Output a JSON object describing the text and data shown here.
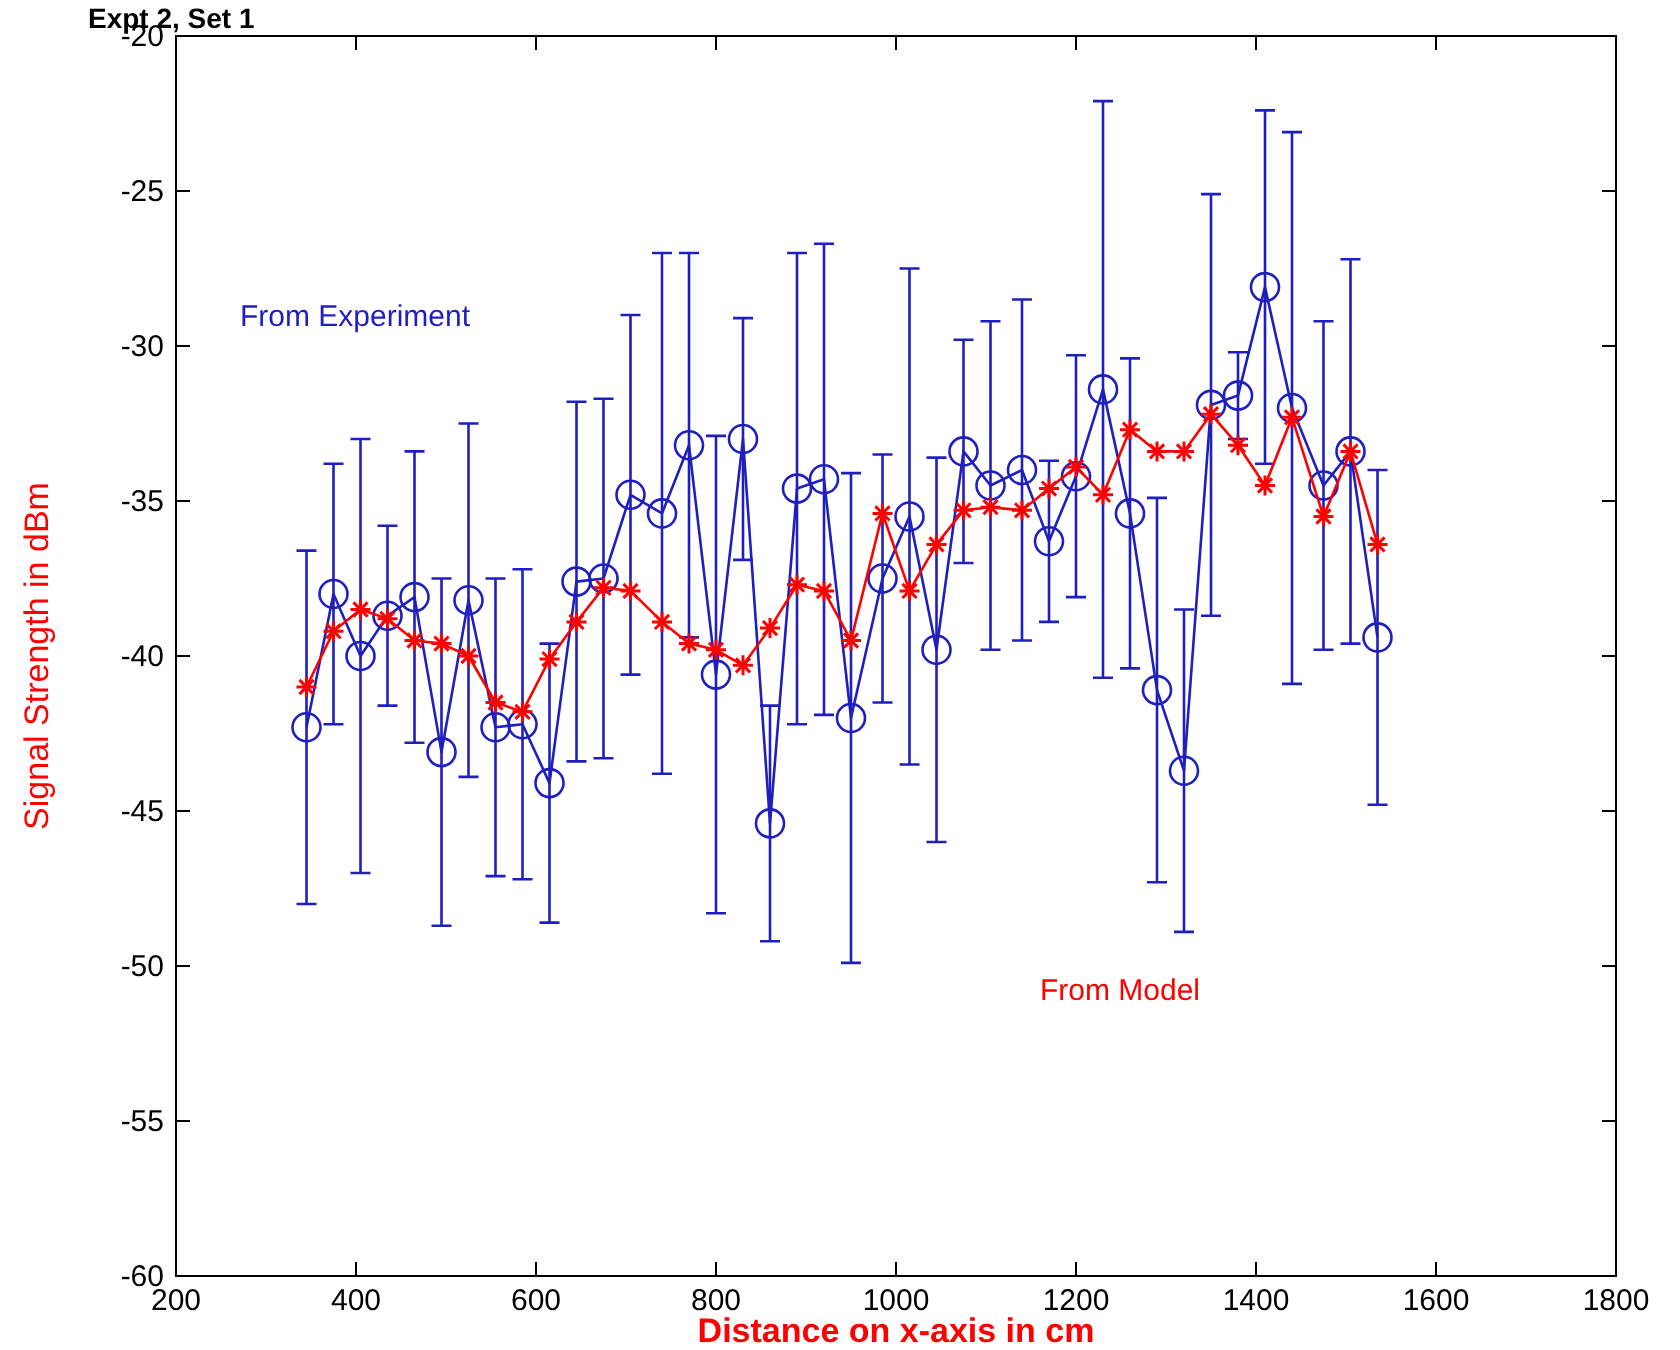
{
  "chart_data": {
    "type": "line",
    "title": "Expt 2, Set 1",
    "xlabel": "Distance on x-axis in cm",
    "ylabel": "Signal Strength in dBm",
    "x": [
      345,
      375,
      405,
      435,
      465,
      495,
      525,
      555,
      585,
      615,
      645,
      675,
      705,
      740,
      770,
      800,
      830,
      860,
      890,
      920,
      950,
      985,
      1015,
      1045,
      1075,
      1105,
      1140,
      1170,
      1200,
      1230,
      1260,
      1290,
      1320,
      1350,
      1380,
      1410,
      1440,
      1475,
      1505,
      1535
    ],
    "series": [
      {
        "name": "From Experiment",
        "color": "#1f1fbf",
        "marker": "circle",
        "values": [
          -42.3,
          -38,
          -40,
          -38.7,
          -38.1,
          -43.1,
          -38.2,
          -42.3,
          -42.2,
          -44.1,
          -37.6,
          -37.5,
          -34.8,
          -35.4,
          -33.2,
          -40.6,
          -33,
          -45.4,
          -34.6,
          -34.3,
          -42,
          -37.5,
          -35.5,
          -39.8,
          -33.4,
          -34.5,
          -34,
          -36.3,
          -34.2,
          -31.4,
          -35.4,
          -41.1,
          -43.7,
          -31.9,
          -31.6,
          -28.1,
          -32,
          -34.5,
          -33.4,
          -39.4
        ],
        "errors": [
          5.7,
          4.2,
          7,
          2.9,
          4.7,
          5.6,
          5.7,
          4.8,
          5,
          4.5,
          5.8,
          5.8,
          5.8,
          8.4,
          6.2,
          7.7,
          3.9,
          3.8,
          7.6,
          7.6,
          7.9,
          4,
          8,
          6.2,
          3.6,
          5.3,
          5.5,
          2.6,
          3.9,
          9.3,
          5,
          6.2,
          5.2,
          6.8,
          1.4,
          5.7,
          8.9,
          5.3,
          6.2,
          5.4
        ]
      },
      {
        "name": "From Model",
        "color": "#ff0000",
        "marker": "cross",
        "values": [
          -41,
          -39.2,
          -38.5,
          -38.8,
          -39.5,
          -39.6,
          -40,
          -41.5,
          -41.8,
          -40.1,
          -38.9,
          -37.8,
          -37.9,
          -38.9,
          -39.6,
          -39.8,
          -40.3,
          -39.1,
          -37.7,
          -37.9,
          -39.5,
          -35.4,
          -37.9,
          -36.4,
          -35.3,
          -35.2,
          -35.3,
          -34.6,
          -33.9,
          -34.8,
          -32.7,
          -33.4,
          -33.4,
          -32.2,
          -33.2,
          -34.5,
          -32.3,
          -35.5,
          -33.4,
          -36.4
        ]
      }
    ],
    "xlim": [
      200,
      1800
    ],
    "xticks": [
      200,
      400,
      600,
      800,
      1000,
      1200,
      1400,
      1600,
      1800
    ],
    "ylim": [
      -60,
      -20
    ],
    "yticks": [
      -60,
      -55,
      -50,
      -45,
      -40,
      -35,
      -30,
      -25,
      -20
    ],
    "grid": false,
    "line_style": "solid"
  }
}
